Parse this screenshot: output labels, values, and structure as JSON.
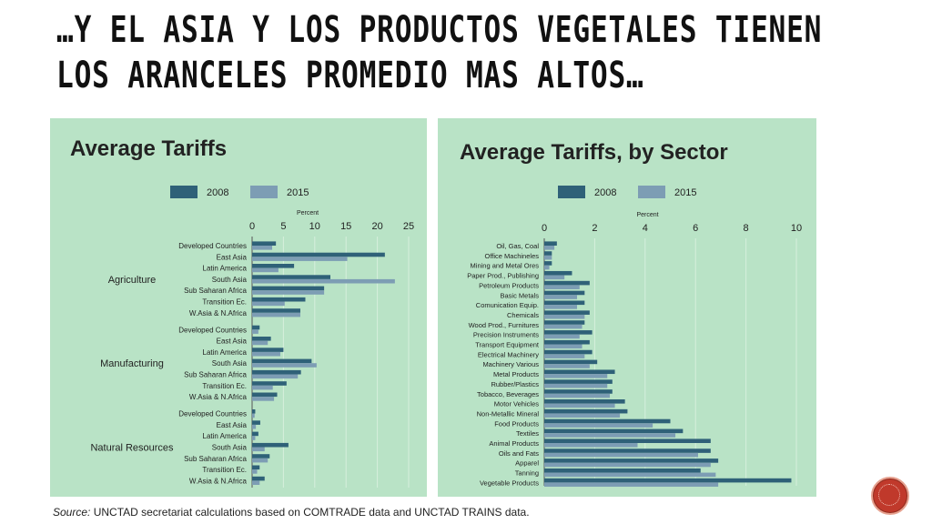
{
  "slide": {
    "title_line1": "…Y EL ASIA Y LOS PRODUCTOS VEGETALES TIENEN",
    "title_line2": "LOS ARANCELES PROMEDIO MAS ALTOS…",
    "source_prefix": "Source:",
    "source_text": " UNCTAD secretariat calculations based on COMTRADE data and UNCTAD TRAINS data."
  },
  "colors": {
    "panel_bg": "#b9e3c6",
    "series_2008": "#2f6178",
    "series_2015": "#7d9db4"
  },
  "chart_data": [
    {
      "type": "bar",
      "orientation": "horizontal",
      "title": "Average Tariffs",
      "xlabel": "Percent",
      "xlim": [
        0,
        25
      ],
      "xticks": [
        0,
        5,
        10,
        15,
        20,
        25
      ],
      "legend": [
        "2008",
        "2015"
      ],
      "legend_position": "top",
      "groups": [
        {
          "name": "Agriculture",
          "categories": [
            "Developed Countries",
            "East Asia",
            "Latin America",
            "South Asia",
            "Sub Saharan Africa",
            "Transition Ec.",
            "W.Asia & N.Africa"
          ],
          "series": [
            {
              "name": "2008",
              "values": [
                3.8,
                21.2,
                6.7,
                12.5,
                11.5,
                8.5,
                7.7
              ]
            },
            {
              "name": "2015",
              "values": [
                3.2,
                15.2,
                4.2,
                22.8,
                11.5,
                5.2,
                7.7
              ]
            }
          ]
        },
        {
          "name": "Manufacturing",
          "categories": [
            "Developed Countries",
            "East Asia",
            "Latin America",
            "South Asia",
            "Sub Saharan Africa",
            "Transition Ec.",
            "W.Asia & N.Africa"
          ],
          "series": [
            {
              "name": "2008",
              "values": [
                1.2,
                3.0,
                5.0,
                9.5,
                7.8,
                5.5,
                4.0
              ]
            },
            {
              "name": "2015",
              "values": [
                1.0,
                2.5,
                4.5,
                10.3,
                7.3,
                3.3,
                3.5
              ]
            }
          ]
        },
        {
          "name": "Natural Resources",
          "categories": [
            "Developed Countries",
            "East Asia",
            "Latin America",
            "South Asia",
            "Sub Saharan Africa",
            "Transition Ec.",
            "W.Asia & N.Africa"
          ],
          "series": [
            {
              "name": "2008",
              "values": [
                0.5,
                1.3,
                1.0,
                5.8,
                2.8,
                1.2,
                2.0
              ]
            },
            {
              "name": "2015",
              "values": [
                0.4,
                0.6,
                0.5,
                2.0,
                2.5,
                0.8,
                1.2
              ]
            }
          ]
        }
      ]
    },
    {
      "type": "bar",
      "orientation": "horizontal",
      "title": "Average Tariffs, by Sector",
      "xlabel": "Percent",
      "xlim": [
        0,
        10
      ],
      "xticks": [
        0,
        2,
        4,
        6,
        8,
        10
      ],
      "legend": [
        "2008",
        "2015"
      ],
      "legend_position": "top",
      "categories": [
        "Oil, Gas, Coal",
        "Office Machineles",
        "Mining and Metal Ores",
        "Paper Prod., Publishing",
        "Petroleum Products",
        "Basic Metals",
        "Comunication Equip.",
        "Chemicals",
        "Wood Prod., Furnitures",
        "Precision Instruments",
        "Transport Equipment",
        "Electrical Machinery",
        "Machinery Various",
        "Metal Products",
        "Rubber/Plastics",
        "Tobacco, Beverages",
        "Motor Vehicles",
        "Non-Metallic Mineral",
        "Food Products",
        "Textiles",
        "Animal Products",
        "Oils and Fats",
        "Apparel",
        "Tanning",
        "Vegetable Products"
      ],
      "series": [
        {
          "name": "2008",
          "values": [
            0.5,
            0.3,
            0.3,
            1.1,
            1.8,
            1.6,
            1.6,
            1.8,
            1.6,
            1.9,
            1.8,
            1.9,
            2.1,
            2.8,
            2.7,
            2.7,
            3.2,
            3.3,
            5.0,
            5.5,
            6.6,
            6.6,
            6.9,
            6.2,
            9.8
          ]
        },
        {
          "name": "2015",
          "values": [
            0.4,
            0.3,
            0.2,
            0.8,
            1.4,
            1.3,
            1.3,
            1.6,
            1.5,
            1.4,
            1.5,
            1.6,
            1.8,
            2.5,
            2.5,
            2.6,
            2.8,
            3.0,
            4.3,
            5.2,
            3.7,
            6.1,
            6.6,
            6.8,
            6.9
          ]
        }
      ]
    }
  ]
}
